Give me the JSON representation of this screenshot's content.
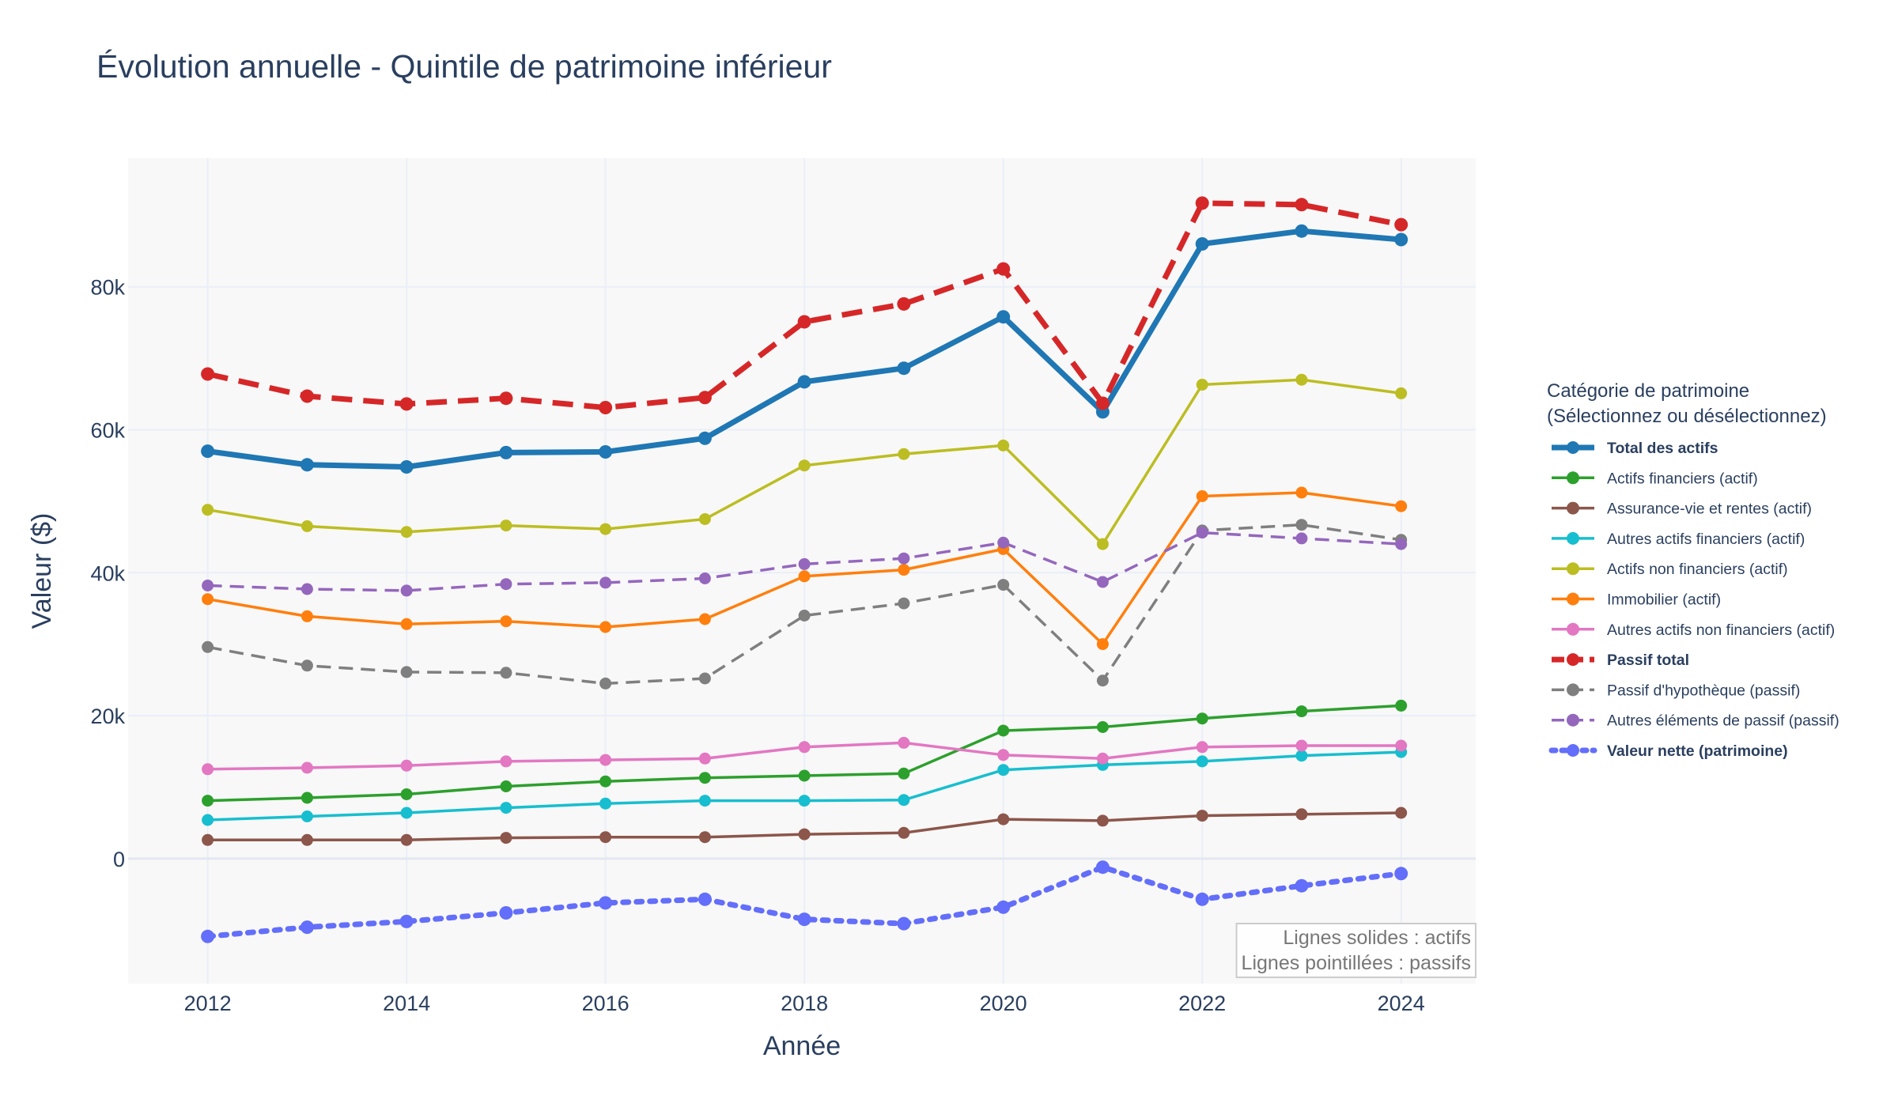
{
  "chart_data": {
    "type": "line",
    "title": "Évolution annuelle - Quintile de patrimoine inférieur",
    "xlabel": "Année",
    "ylabel": "Valeur ($)",
    "xlim": [
      2011.2,
      2024.75
    ],
    "ylim": [
      -17500,
      98000
    ],
    "x_ticks": [
      2012,
      2014,
      2016,
      2018,
      2020,
      2022,
      2024
    ],
    "y_ticks": [
      0,
      20000,
      40000,
      60000,
      80000
    ],
    "y_tick_labels": [
      "0",
      "20k",
      "40k",
      "60k",
      "80k"
    ],
    "grid": true,
    "legend": {
      "title": "Catégorie de patrimoine",
      "subtitle": "(Sélectionnez ou désélectionnez)",
      "placement": "right"
    },
    "annotation": {
      "lines": [
        "Lignes solides : actifs",
        "Lignes pointillées : passifs"
      ],
      "placement": "bottom-right"
    },
    "x": [
      2012,
      2013,
      2014,
      2015,
      2016,
      2017,
      2018,
      2019,
      2020,
      2021,
      2022,
      2023,
      2024
    ],
    "series": [
      {
        "name": "Total des actifs",
        "color": "#1f77b4",
        "dash": "solid",
        "bold": true,
        "values": [
          57000,
          55100,
          54800,
          56800,
          56900,
          58800,
          66700,
          68600,
          75800,
          62500,
          86000,
          87800,
          86600
        ]
      },
      {
        "name": "Actifs financiers (actif)",
        "color": "#2ca02c",
        "dash": "solid",
        "bold": false,
        "values": [
          8100,
          8500,
          9000,
          10100,
          10800,
          11300,
          11600,
          11900,
          17900,
          18400,
          19600,
          20600,
          21400
        ]
      },
      {
        "name": "Assurance-vie et rentes (actif)",
        "color": "#8c564b",
        "dash": "solid",
        "bold": false,
        "values": [
          2600,
          2600,
          2600,
          2900,
          3000,
          3000,
          3400,
          3600,
          5500,
          5300,
          6000,
          6200,
          6400
        ]
      },
      {
        "name": "Autres actifs financiers (actif)",
        "color": "#17becf",
        "dash": "solid",
        "bold": false,
        "values": [
          5400,
          5900,
          6400,
          7100,
          7700,
          8100,
          8100,
          8200,
          12400,
          13100,
          13600,
          14400,
          14900
        ]
      },
      {
        "name": "Actifs non financiers (actif)",
        "color": "#bcbd22",
        "dash": "solid",
        "bold": false,
        "values": [
          48800,
          46500,
          45700,
          46600,
          46100,
          47500,
          55000,
          56600,
          57800,
          44000,
          66300,
          67000,
          65100
        ]
      },
      {
        "name": "Immobilier (actif)",
        "color": "#ff7f0e",
        "dash": "solid",
        "bold": false,
        "values": [
          36300,
          33900,
          32800,
          33200,
          32400,
          33500,
          39500,
          40400,
          43300,
          30000,
          50700,
          51200,
          49300
        ]
      },
      {
        "name": "Autres actifs non financiers (actif)",
        "color": "#e377c2",
        "dash": "solid",
        "bold": false,
        "values": [
          12500,
          12700,
          13000,
          13600,
          13800,
          14000,
          15600,
          16200,
          14500,
          14000,
          15600,
          15800,
          15800
        ]
      },
      {
        "name": "Passif total",
        "color": "#d62728",
        "dash": "dash",
        "bold": true,
        "values": [
          67800,
          64700,
          63600,
          64400,
          63100,
          64500,
          75100,
          77600,
          82500,
          63700,
          91700,
          91500,
          88700
        ]
      },
      {
        "name": "Passif d'hypothèque (passif)",
        "color": "#7f7f7f",
        "dash": "dash",
        "bold": false,
        "values": [
          29600,
          27000,
          26100,
          26000,
          24500,
          25200,
          34000,
          35700,
          38300,
          24900,
          45900,
          46700,
          44600
        ]
      },
      {
        "name": "Autres éléments de passif (passif)",
        "color": "#9467bd",
        "dash": "dash",
        "bold": false,
        "values": [
          38200,
          37700,
          37500,
          38400,
          38600,
          39200,
          41200,
          42000,
          44200,
          38700,
          45600,
          44800,
          44000
        ]
      },
      {
        "name": "Valeur nette (patrimoine)",
        "color": "#636efa",
        "dash": "dot",
        "bold": true,
        "values": [
          -10900,
          -9600,
          -8800,
          -7600,
          -6200,
          -5700,
          -8500,
          -9100,
          -6800,
          -1200,
          -5700,
          -3800,
          -2100
        ]
      }
    ]
  }
}
